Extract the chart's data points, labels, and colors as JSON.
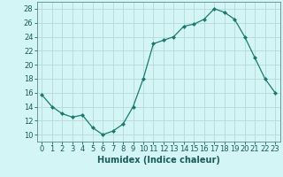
{
  "x": [
    0,
    1,
    2,
    3,
    4,
    5,
    6,
    7,
    8,
    9,
    10,
    11,
    12,
    13,
    14,
    15,
    16,
    17,
    18,
    19,
    20,
    21,
    22,
    23
  ],
  "y": [
    15.7,
    14.0,
    13.0,
    12.5,
    12.8,
    11.0,
    10.0,
    10.5,
    11.5,
    14.0,
    18.0,
    23.0,
    23.5,
    24.0,
    25.5,
    25.8,
    26.5,
    28.0,
    27.5,
    26.5,
    24.0,
    21.0,
    18.0,
    16.0
  ],
  "line_color": "#1a7a6e",
  "marker": "D",
  "marker_size": 2.0,
  "bg_color": "#d4f5f5",
  "grid_color": "#b8d8d8",
  "xlabel": "Humidex (Indice chaleur)",
  "xlim": [
    -0.5,
    23.5
  ],
  "ylim": [
    9,
    29
  ],
  "yticks": [
    10,
    12,
    14,
    16,
    18,
    20,
    22,
    24,
    26,
    28
  ],
  "xticks": [
    0,
    1,
    2,
    3,
    4,
    5,
    6,
    7,
    8,
    9,
    10,
    11,
    12,
    13,
    14,
    15,
    16,
    17,
    18,
    19,
    20,
    21,
    22,
    23
  ],
  "xlabel_fontsize": 7.0,
  "tick_fontsize": 6.0,
  "linewidth": 0.9
}
